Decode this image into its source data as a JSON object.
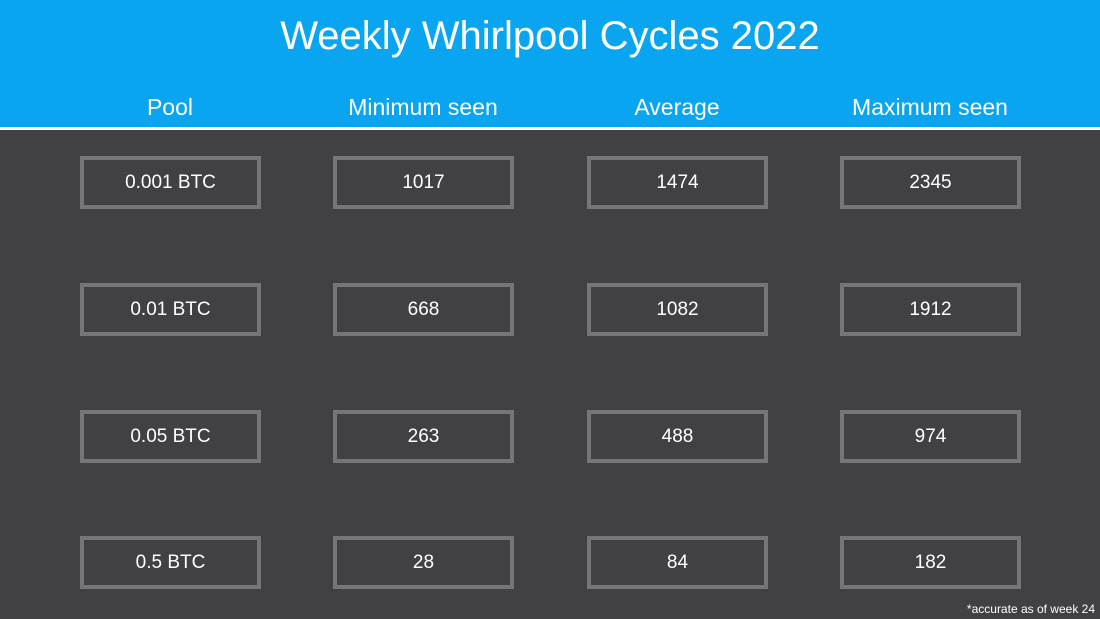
{
  "title": "Weekly Whirlpool Cycles 2022",
  "footnote": "*accurate as of week 24",
  "colors": {
    "header": "#0aa5f0",
    "background": "#414144",
    "cell_border": "#76767a",
    "text": "#ffffff"
  },
  "chart_data": {
    "type": "table",
    "title": "Weekly Whirlpool Cycles 2022",
    "columns": [
      "Pool",
      "Minimum seen",
      "Average",
      "Maximum seen"
    ],
    "rows": [
      [
        "0.001 BTC",
        "1017",
        "1474",
        "2345"
      ],
      [
        "0.01 BTC",
        "668",
        "1082",
        "1912"
      ],
      [
        "0.05 BTC",
        "263",
        "488",
        "974"
      ],
      [
        "0.5 BTC",
        "28",
        "84",
        "182"
      ]
    ]
  }
}
